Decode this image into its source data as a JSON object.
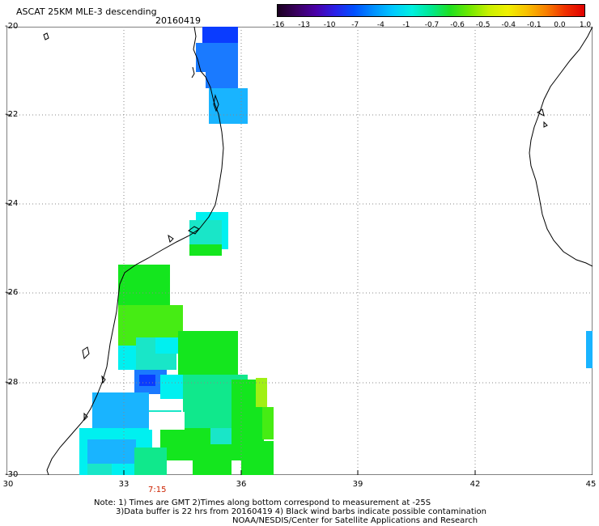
{
  "title": "ASCAT 25KM MLE-3 descending",
  "date": "20160419",
  "colorbar": {
    "ticks": [
      "-16",
      "-13",
      "-10",
      "-7",
      "-4",
      "-1",
      "-0.7",
      "-0.6",
      "-0.5",
      "-0.4",
      "-0.1",
      "0.0",
      "1.0"
    ],
    "colors": [
      "#1a0020",
      "#3a0060",
      "#4a00a8",
      "#2a20e8",
      "#0050ff",
      "#0090ff",
      "#00c8ff",
      "#00f0e0",
      "#00e890",
      "#20e020",
      "#70e800",
      "#c8f000",
      "#f0f000",
      "#f8c000",
      "#f88000",
      "#f03000",
      "#e00000"
    ]
  },
  "axes": {
    "y_labels": [
      "-20",
      "-22",
      "-24",
      "-26",
      "-28",
      "-30"
    ],
    "x_labels": [
      "30",
      "33",
      "36",
      "39",
      "42",
      "45"
    ]
  },
  "time_label": "7:15",
  "notes": [
    "Note: 1) Times are GMT 2)Times along bottom correspond to measurement at -25S",
    "3)Data buffer is 22 hrs from 20160419 4) Black wind barbs indicate possible contamination",
    "NOAA/NESDIS/Center for Satellite Applications and Research"
  ],
  "swath_colors": {
    "dark_blue": "#0a3cff",
    "blue": "#1a7aff",
    "light_blue": "#19b4ff",
    "cyan": "#00f0f0",
    "aqua": "#19e6c8",
    "teal_green": "#10e88c",
    "green": "#14e61e",
    "lime": "#46ec14",
    "yellow_green": "#a0f014"
  }
}
